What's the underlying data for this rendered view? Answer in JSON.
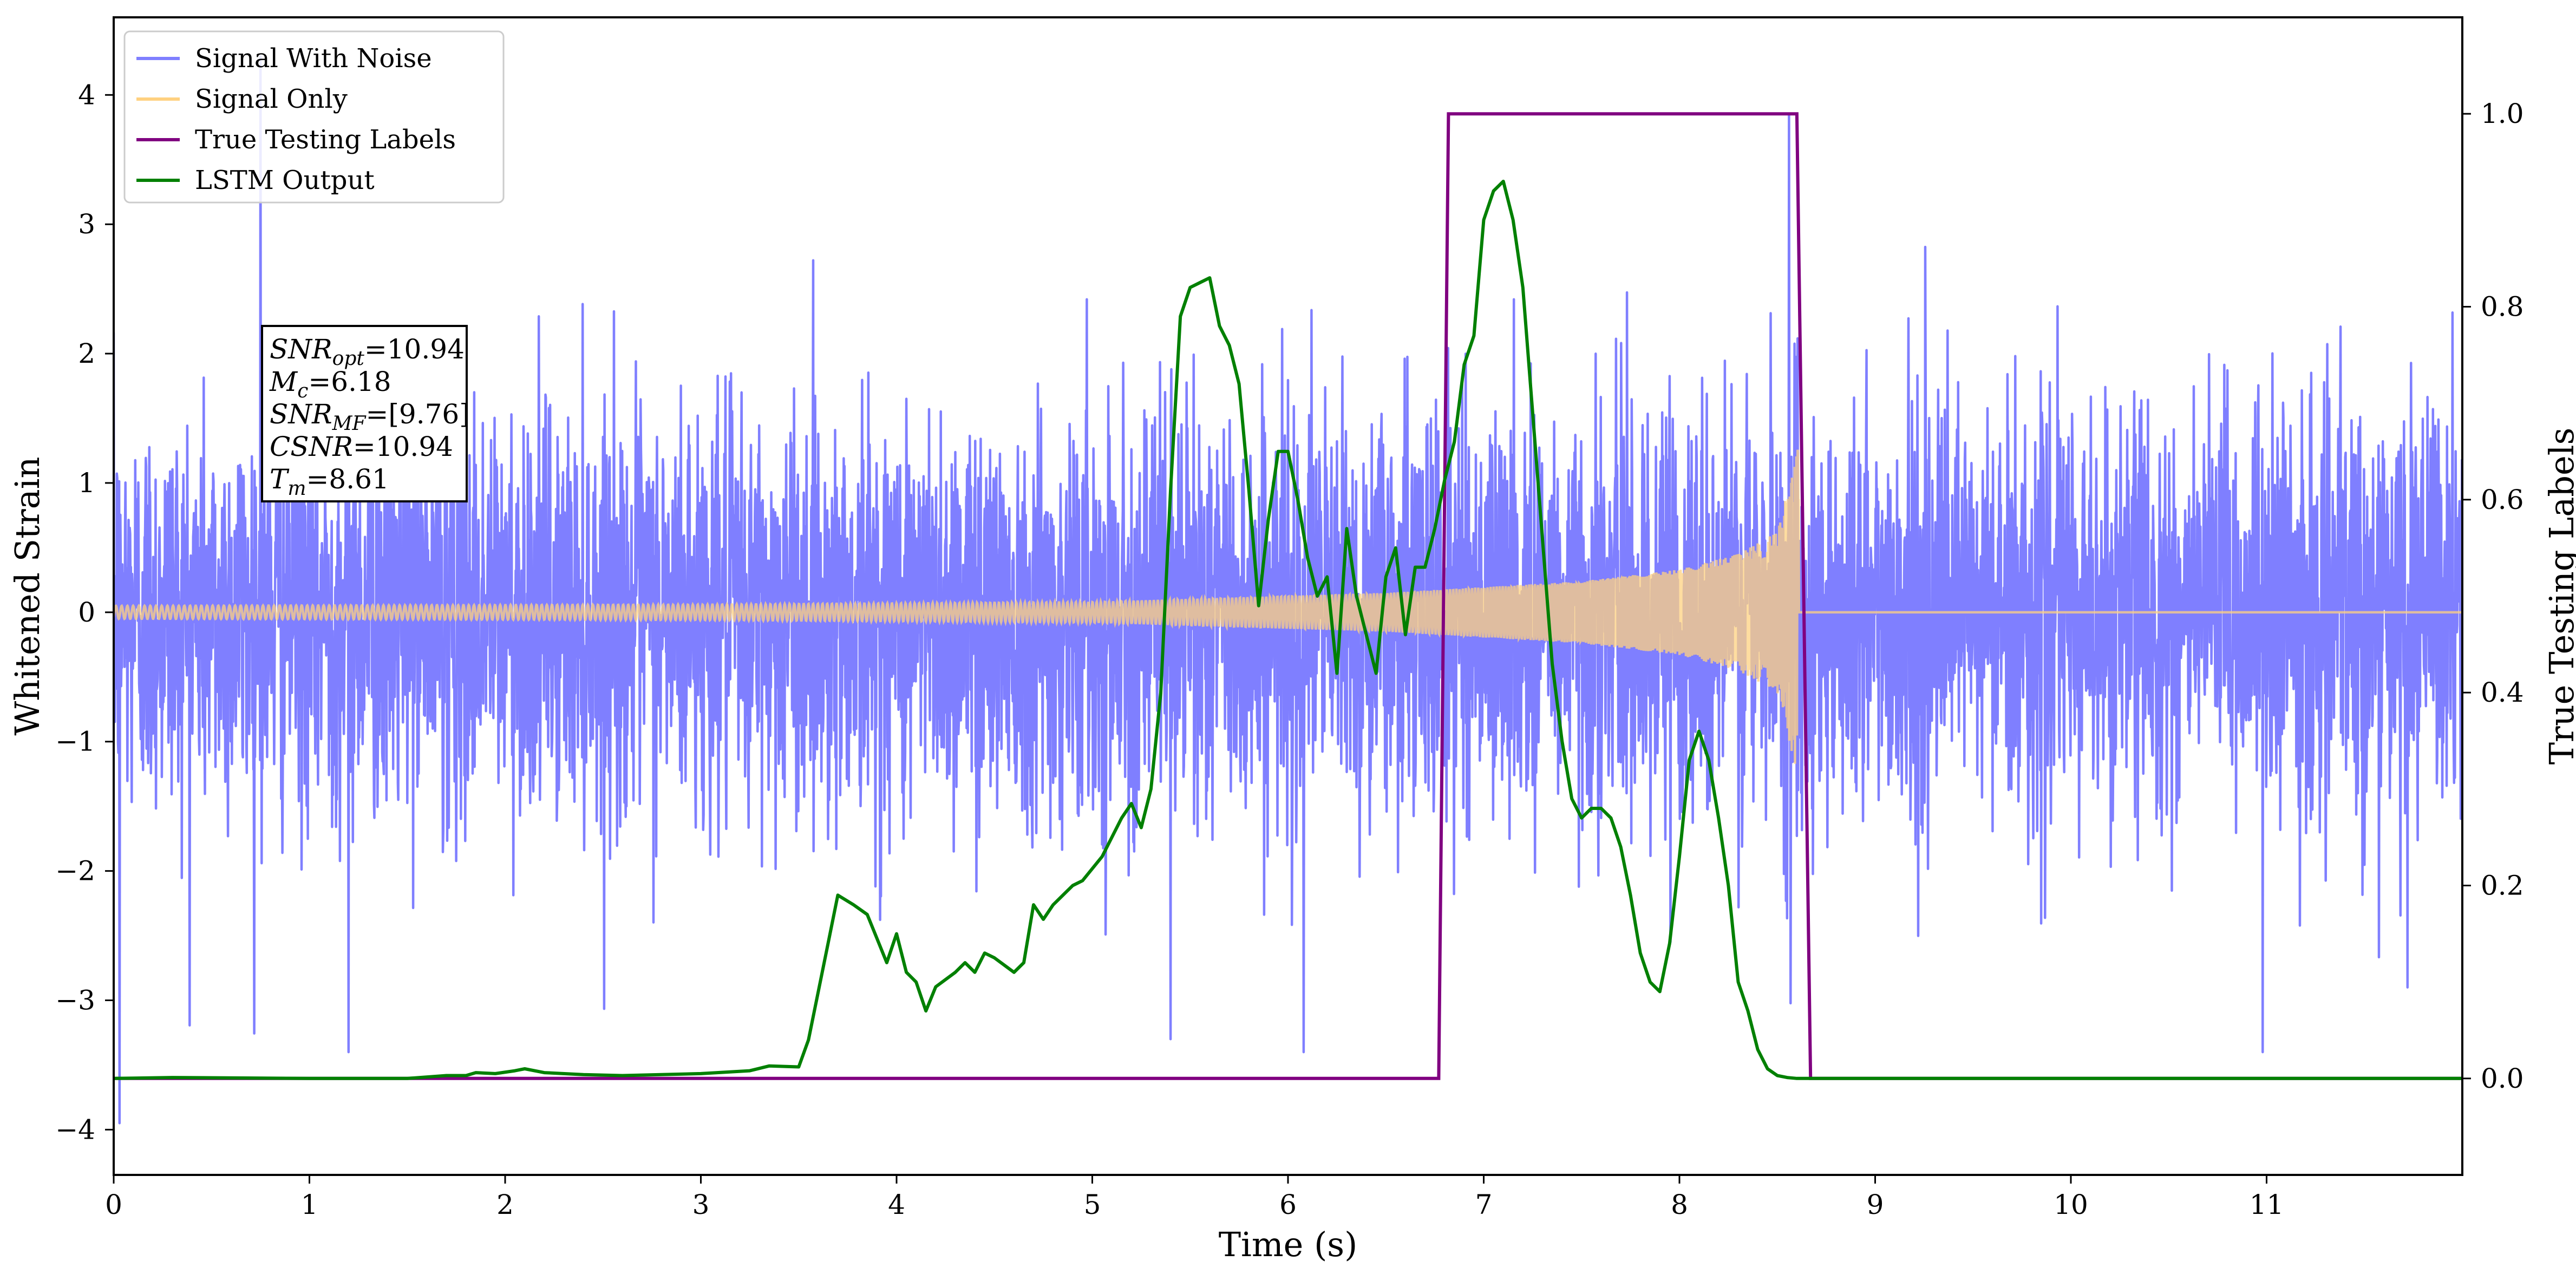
{
  "chart_data": {
    "type": "line",
    "title": "",
    "xlabel": "Time (s)",
    "ylabel": "Whitened Strain",
    "y2label": "True Testing Labels",
    "xlim": [
      0,
      12.0
    ],
    "ylim": [
      -4.35,
      4.6
    ],
    "y2lim": [
      -0.1,
      1.1
    ],
    "xticks": [
      0,
      1,
      2,
      3,
      4,
      5,
      6,
      7,
      8,
      9,
      10,
      11
    ],
    "yticks": [
      -4,
      -3,
      -2,
      -1,
      0,
      1,
      2,
      3,
      4
    ],
    "yticklabels": [
      "−4",
      "−3",
      "−2",
      "−1",
      "0",
      "1",
      "2",
      "3",
      "4"
    ],
    "y2ticks": [
      0.0,
      0.2,
      0.4,
      0.6,
      0.8,
      1.0
    ],
    "y2ticklabels": [
      "0.0",
      "0.2",
      "0.4",
      "0.6",
      "0.8",
      "1.0"
    ],
    "grid": false,
    "legend_position": "upper-left",
    "legend": [
      {
        "label": "Signal With Noise",
        "color": "#7f7fff"
      },
      {
        "label": "Signal Only",
        "color": "#ffd180"
      },
      {
        "label": "True Testing Labels",
        "color": "#800080"
      },
      {
        "label": "LSTM Output",
        "color": "#008000"
      }
    ],
    "annotation": {
      "lines": [
        {
          "base": "SNR",
          "sub": "opt",
          "rest": "=10.94"
        },
        {
          "base": "M",
          "sub": "c",
          "rest": "=6.18"
        },
        {
          "base": "SNR",
          "sub": "MF",
          "rest": "=[9.76]"
        },
        {
          "base": "CSNR",
          "sub": "",
          "rest": "=10.94"
        },
        {
          "base": "T",
          "sub": "m",
          "rest": "=8.61"
        }
      ]
    },
    "series": [
      {
        "name": "Signal With Noise",
        "axis": "left",
        "color": "#7f7fff",
        "description_only": "dense gaussian-like noise, amplitude mostly within ±2, extremes",
        "extremes": [
          {
            "x": 0.03,
            "y": -3.95
          },
          {
            "x": 0.75,
            "y": 4.3
          },
          {
            "x": 1.2,
            "y": -3.4
          },
          {
            "x": 5.4,
            "y": -3.3
          },
          {
            "x": 6.08,
            "y": -3.4
          },
          {
            "x": 8.56,
            "y": 3.85
          },
          {
            "x": 10.98,
            "y": -3.4
          },
          {
            "x": 11.72,
            "y": -2.9
          }
        ]
      },
      {
        "name": "Signal Only",
        "axis": "left",
        "color": "#ffd180",
        "chirp_start": 0.0,
        "merger_time": 8.61,
        "amplitude_envelope": [
          {
            "x": 0.0,
            "y": 0.05
          },
          {
            "x": 3.0,
            "y": 0.06
          },
          {
            "x": 5.0,
            "y": 0.08
          },
          {
            "x": 6.5,
            "y": 0.15
          },
          {
            "x": 7.5,
            "y": 0.24
          },
          {
            "x": 8.0,
            "y": 0.33
          },
          {
            "x": 8.3,
            "y": 0.45
          },
          {
            "x": 8.5,
            "y": 0.62
          },
          {
            "x": 8.61,
            "y": 1.3
          }
        ]
      },
      {
        "name": "True Testing Labels",
        "axis": "right",
        "color": "#800080",
        "x": [
          0.0,
          6.77,
          6.82,
          8.6,
          8.67,
          12.0
        ],
        "y": [
          0,
          0,
          1,
          1,
          0,
          0
        ]
      },
      {
        "name": "LSTM Output",
        "axis": "right",
        "color": "#008000",
        "x": [
          0.0,
          0.3,
          1.0,
          1.5,
          1.7,
          1.8,
          1.85,
          1.95,
          2.05,
          2.1,
          2.2,
          2.4,
          2.6,
          3.0,
          3.25,
          3.35,
          3.5,
          3.55,
          3.65,
          3.7,
          3.78,
          3.85,
          3.95,
          4.0,
          4.05,
          4.1,
          4.15,
          4.2,
          4.3,
          4.35,
          4.4,
          4.45,
          4.5,
          4.6,
          4.65,
          4.7,
          4.75,
          4.8,
          4.85,
          4.9,
          4.95,
          5.05,
          5.15,
          5.2,
          5.25,
          5.3,
          5.35,
          5.4,
          5.45,
          5.5,
          5.55,
          5.6,
          5.65,
          5.7,
          5.75,
          5.8,
          5.85,
          5.9,
          5.95,
          6.0,
          6.05,
          6.1,
          6.15,
          6.2,
          6.25,
          6.3,
          6.35,
          6.4,
          6.45,
          6.5,
          6.55,
          6.6,
          6.65,
          6.7,
          6.75,
          6.8,
          6.85,
          6.9,
          6.95,
          7.0,
          7.05,
          7.1,
          7.15,
          7.2,
          7.25,
          7.3,
          7.35,
          7.4,
          7.45,
          7.5,
          7.55,
          7.6,
          7.65,
          7.7,
          7.75,
          7.8,
          7.85,
          7.9,
          7.95,
          8.0,
          8.05,
          8.1,
          8.15,
          8.2,
          8.25,
          8.3,
          8.35,
          8.4,
          8.45,
          8.5,
          8.55,
          8.6,
          8.65,
          8.7,
          8.8,
          9.0,
          12.0
        ],
        "y": [
          0.0,
          0.001,
          0.0,
          0.0,
          0.003,
          0.003,
          0.006,
          0.005,
          0.008,
          0.01,
          0.006,
          0.004,
          0.003,
          0.005,
          0.008,
          0.013,
          0.012,
          0.04,
          0.14,
          0.19,
          0.18,
          0.17,
          0.12,
          0.15,
          0.11,
          0.1,
          0.07,
          0.095,
          0.11,
          0.12,
          0.11,
          0.13,
          0.125,
          0.11,
          0.12,
          0.18,
          0.165,
          0.18,
          0.19,
          0.2,
          0.205,
          0.23,
          0.27,
          0.285,
          0.26,
          0.3,
          0.4,
          0.61,
          0.79,
          0.82,
          0.825,
          0.83,
          0.78,
          0.76,
          0.72,
          0.61,
          0.49,
          0.58,
          0.65,
          0.65,
          0.6,
          0.54,
          0.5,
          0.52,
          0.42,
          0.57,
          0.5,
          0.46,
          0.42,
          0.52,
          0.55,
          0.46,
          0.53,
          0.53,
          0.57,
          0.62,
          0.66,
          0.74,
          0.77,
          0.89,
          0.92,
          0.93,
          0.89,
          0.82,
          0.69,
          0.56,
          0.43,
          0.35,
          0.29,
          0.27,
          0.28,
          0.28,
          0.27,
          0.24,
          0.19,
          0.13,
          0.1,
          0.09,
          0.14,
          0.23,
          0.33,
          0.36,
          0.33,
          0.27,
          0.2,
          0.1,
          0.07,
          0.03,
          0.01,
          0.003,
          0.001,
          0.0,
          0.0,
          0.0,
          0.0,
          0.0,
          0.0
        ]
      }
    ]
  }
}
